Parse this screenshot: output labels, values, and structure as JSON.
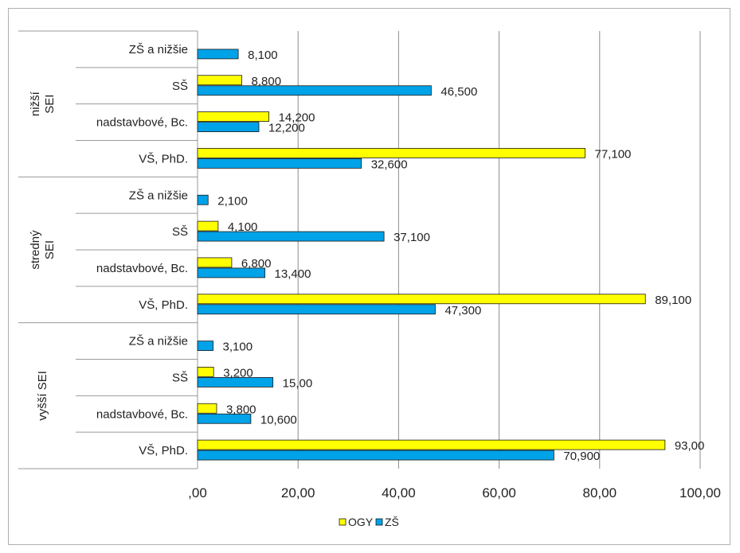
{
  "chart_data": {
    "type": "bar",
    "orientation": "horizontal",
    "xlim": [
      0,
      100
    ],
    "xticks": [
      ",00",
      "20,00",
      "40,00",
      "60,00",
      "80,00",
      "100,00"
    ],
    "grid": true,
    "legend_position": "bottom",
    "groups": [
      {
        "label": "nižší SEI",
        "label_lines": [
          "nižší",
          "SEI"
        ],
        "rows": [
          {
            "category": "ZŠ a nižšie",
            "OGY": null,
            "ZS": 8.1,
            "OGY_label": "",
            "ZS_label": "8,100"
          },
          {
            "category": "SŠ",
            "OGY": 8.8,
            "ZS": 46.5,
            "OGY_label": "8,800",
            "ZS_label": "46,500"
          },
          {
            "category": "nadstavbové, Bc.",
            "OGY": 14.2,
            "ZS": 12.2,
            "OGY_label": "14,200",
            "ZS_label": "12,200"
          },
          {
            "category": "VŠ, PhD.",
            "OGY": 77.1,
            "ZS": 32.6,
            "OGY_label": "77,100",
            "ZS_label": "32,600"
          }
        ]
      },
      {
        "label": "stredný SEI",
        "label_lines": [
          "stredný",
          "SEI"
        ],
        "rows": [
          {
            "category": "ZŠ a nižšie",
            "OGY": null,
            "ZS": 2.1,
            "OGY_label": "",
            "ZS_label": "2,100"
          },
          {
            "category": "SŠ",
            "OGY": 4.1,
            "ZS": 37.1,
            "OGY_label": "4,100",
            "ZS_label": "37,100"
          },
          {
            "category": "nadstavbové, Bc.",
            "OGY": 6.8,
            "ZS": 13.4,
            "OGY_label": "6,800",
            "ZS_label": "13,400"
          },
          {
            "category": "VŠ, PhD.",
            "OGY": 89.1,
            "ZS": 47.3,
            "OGY_label": "89,100",
            "ZS_label": "47,300"
          }
        ]
      },
      {
        "label": "vyšší SEI",
        "label_lines": [
          "vyšší SEI"
        ],
        "rows": [
          {
            "category": "ZŠ a nižšie",
            "OGY": null,
            "ZS": 3.1,
            "OGY_label": "",
            "ZS_label": "3,100"
          },
          {
            "category": "SŠ",
            "OGY": 3.2,
            "ZS": 15.0,
            "OGY_label": "3,200",
            "ZS_label": "15,00"
          },
          {
            "category": "nadstavbové, Bc.",
            "OGY": 3.8,
            "ZS": 10.6,
            "OGY_label": "3,800",
            "ZS_label": "10,600"
          },
          {
            "category": "VŠ, PhD.",
            "OGY": 93.0,
            "ZS": 70.9,
            "OGY_label": "93,00",
            "ZS_label": "70,900"
          }
        ]
      }
    ],
    "series": [
      {
        "key": "OGY",
        "name": "OGY",
        "color": "#ffff00"
      },
      {
        "key": "ZS",
        "name": "ZŠ",
        "color": "#00a2e8"
      }
    ],
    "bar_border_color": "#1a1a1a",
    "grid_color": "#8c8c8c",
    "axis_line_color": "#9a9a9a"
  }
}
